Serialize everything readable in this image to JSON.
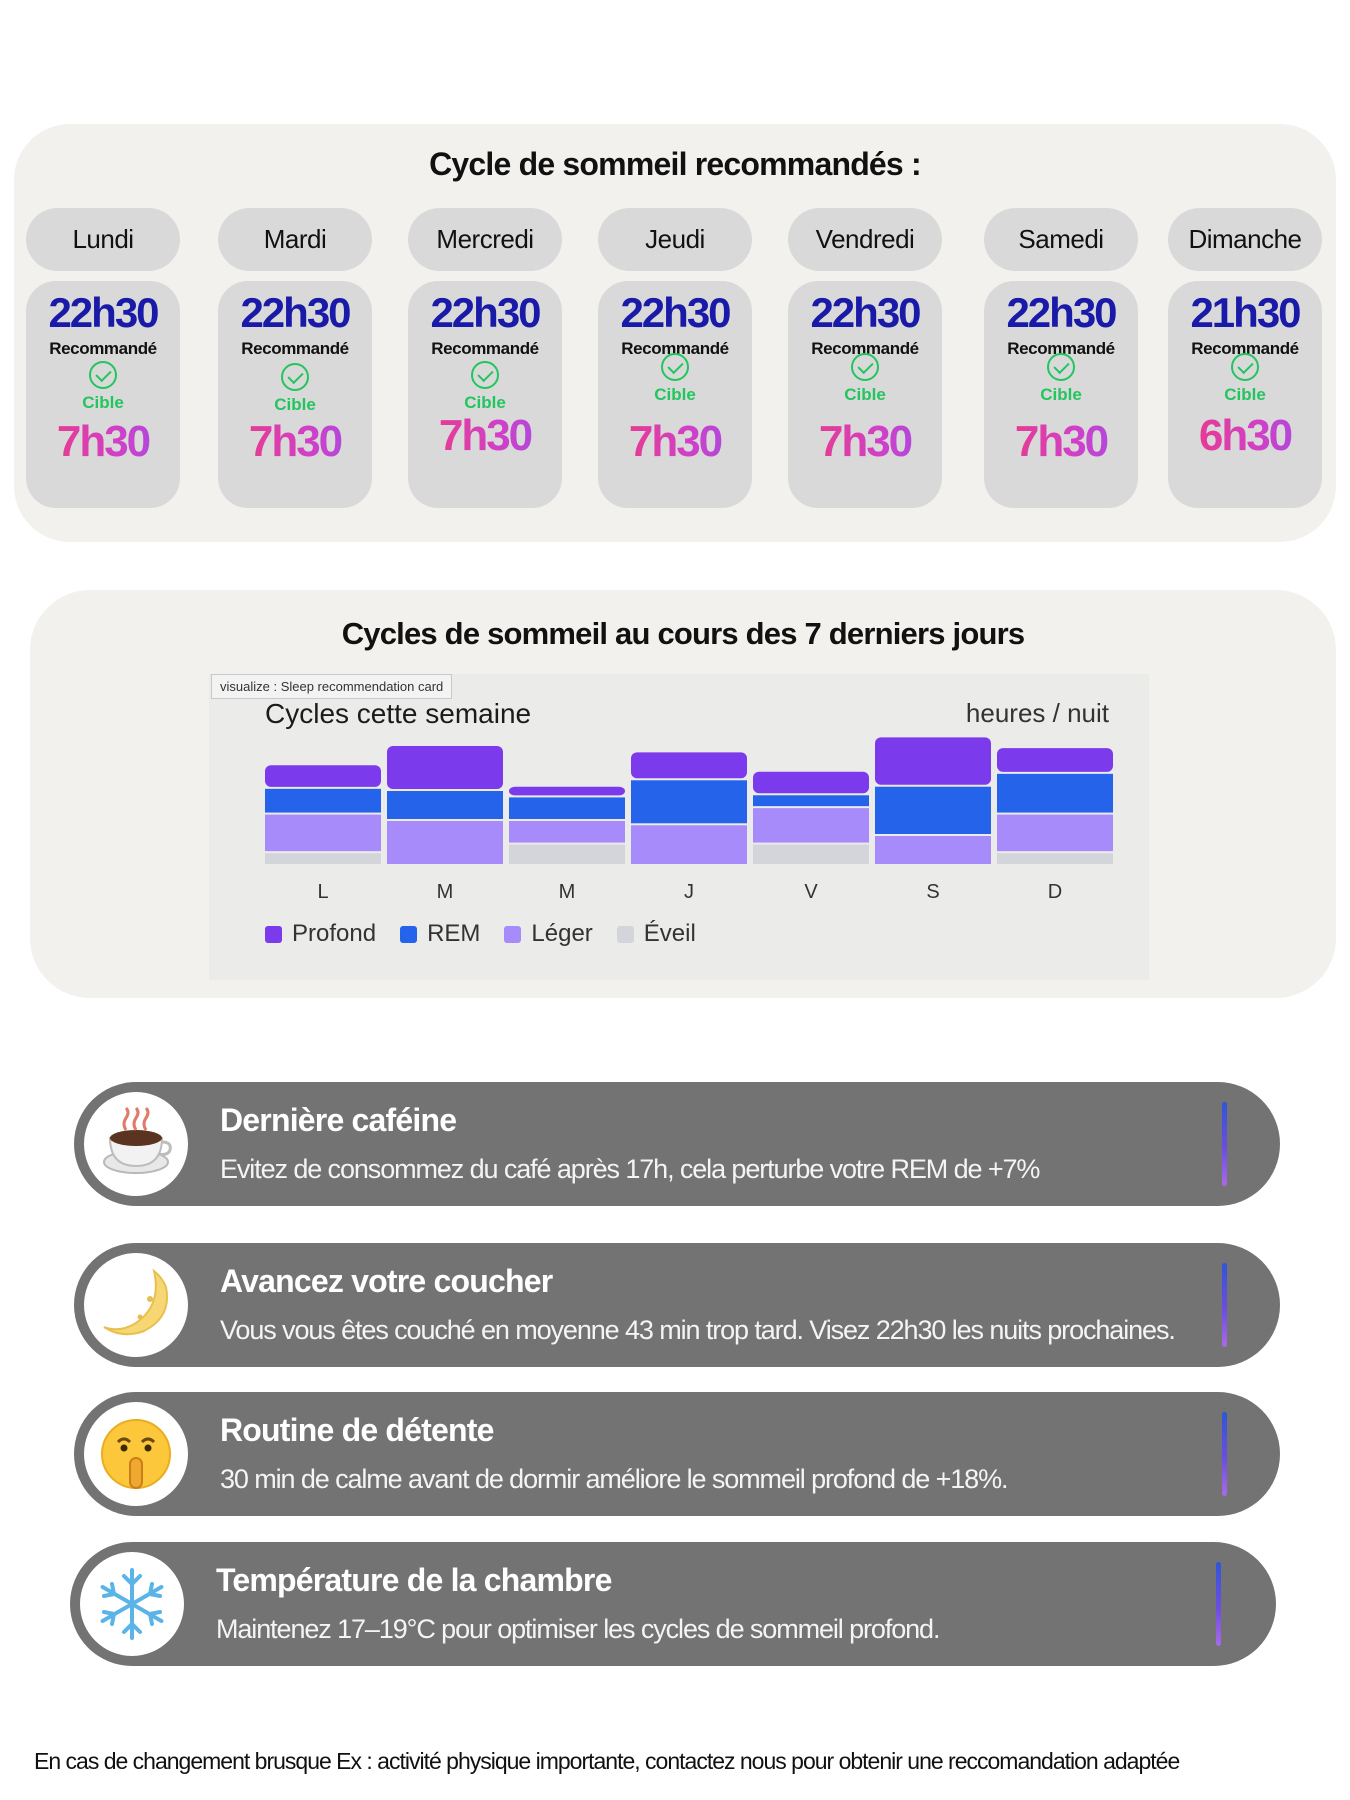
{
  "recommended": {
    "title": "Cycle de sommeil recommandés :",
    "days": [
      {
        "day": "Lundi",
        "bedtime": "22h30",
        "bed_label": "Recommandé",
        "target_label": "Cible",
        "target": "7h30"
      },
      {
        "day": "Mardi",
        "bedtime": "22h30",
        "bed_label": "Recommandé",
        "target_label": "Cible",
        "target": "7h30"
      },
      {
        "day": "Mercredi",
        "bedtime": "22h30",
        "bed_label": "Recommandé",
        "target_label": "Cible",
        "target": "7h30"
      },
      {
        "day": "Jeudi",
        "bedtime": "22h30",
        "bed_label": "Recommandé",
        "target_label": "Cible",
        "target": "7h30"
      },
      {
        "day": "Vendredi",
        "bedtime": "22h30",
        "bed_label": "Recommandé",
        "target_label": "Cible",
        "target": "7h30"
      },
      {
        "day": "Samedi",
        "bedtime": "22h30",
        "bed_label": "Recommandé",
        "target_label": "Cible",
        "target": "7h30"
      },
      {
        "day": "Dimanche",
        "bedtime": "21h30",
        "bed_label": "Recommandé",
        "target_label": "Cible",
        "target": "6h30"
      }
    ],
    "icon": "check-circle-icon"
  },
  "history": {
    "title": "Cycles de sommeil au cours des 7 derniers jours",
    "tooltip": "visualize : Sleep recommendation card",
    "chart_title": "Cycles cette semaine",
    "unit_label": "heures / nuit"
  },
  "chart_data": {
    "type": "bar",
    "stacked": true,
    "categories": [
      "L",
      "M",
      "M",
      "J",
      "V",
      "S",
      "D"
    ],
    "series": [
      {
        "name": "Éveil",
        "color": "#d4d4db",
        "values": [
          0.6,
          0.0,
          1.0,
          0.0,
          1.0,
          0.0,
          0.6
        ]
      },
      {
        "name": "Léger",
        "color": "#a78bfa",
        "values": [
          1.8,
          2.1,
          1.1,
          1.9,
          1.7,
          1.4,
          1.8
        ]
      },
      {
        "name": "REM",
        "color": "#2563eb",
        "values": [
          1.2,
          1.4,
          1.1,
          2.1,
          0.6,
          2.3,
          1.9
        ]
      },
      {
        "name": "Profond",
        "color": "#7c3aed",
        "values": [
          1.1,
          2.1,
          0.5,
          1.3,
          1.1,
          2.3,
          1.2
        ]
      }
    ],
    "legend_order": [
      "Profond",
      "REM",
      "Léger",
      "Éveil"
    ],
    "legend_position": "bottom-left",
    "ylim": [
      0,
      7
    ]
  },
  "tips": [
    {
      "icon": "coffee-cup-icon",
      "title": "Dernière caféine",
      "text": "Evitez de consommez du café après 17h, cela perturbe votre REM de +7%"
    },
    {
      "icon": "crescent-moon-icon",
      "title": "Avancez votre coucher",
      "text": "Vous vous êtes couché en moyenne 43 min trop tard. Visez 22h30 les nuits prochaines."
    },
    {
      "icon": "shushing-face-icon",
      "title": "Routine de détente",
      "text": "30 min de calme avant de dormir améliore le sommeil profond de +18%."
    },
    {
      "icon": "snowflake-icon",
      "title": "Température  de la chambre",
      "text": "Maintenez 17–19°C pour optimiser les cycles de sommeil profond."
    }
  ],
  "footer": "En cas de changement brusque Ex : activité physique importante, contactez nous pour obtenir une reccomandation adaptée",
  "colors": {
    "bedtime": "#1a1aa8",
    "target_gradient_start": "#f03a7a",
    "target_gradient_end": "#9b4fe8",
    "check": "#22c55e",
    "tip_background": "#737373",
    "panel_background": "#f2f1ee"
  }
}
